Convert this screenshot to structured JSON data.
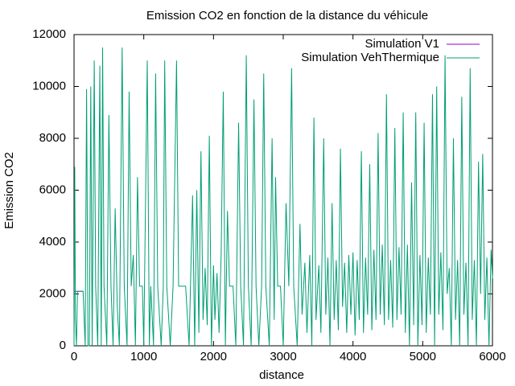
{
  "chart_data": {
    "type": "line",
    "title": "Emission CO2 en fonction de la distance du véhicule",
    "xlabel": "distance",
    "ylabel": "Emission CO2",
    "xlim": [
      0,
      6000
    ],
    "xticks": [
      0,
      1000,
      2000,
      3000,
      4000,
      5000,
      6000
    ],
    "ylim": [
      0,
      12000
    ],
    "yticks": [
      0,
      2000,
      4000,
      6000,
      8000,
      10000,
      12000
    ],
    "grid": false,
    "legend_position": "top-right",
    "series": [
      {
        "name": "Simulation V1",
        "color": "#9400d3",
        "x": [
          0,
          50,
          130
        ],
        "values": [
          2100,
          2100,
          2100
        ]
      },
      {
        "name": "Simulation VehThermique",
        "color": "#009e73",
        "x": [
          0,
          10,
          20,
          35,
          50,
          130,
          160,
          180,
          200,
          220,
          240,
          260,
          290,
          310,
          340,
          370,
          390,
          410,
          430,
          470,
          500,
          530,
          560,
          590,
          620,
          650,
          690,
          720,
          760,
          790,
          820,
          850,
          880,
          910,
          940,
          980,
          1000,
          1050,
          1080,
          1100,
          1140,
          1170,
          1200,
          1250,
          1280,
          1300,
          1330,
          1380,
          1420,
          1470,
          1500,
          1600,
          1650,
          1700,
          1730,
          1760,
          1790,
          1820,
          1850,
          1880,
          1910,
          1940,
          1970,
          2000,
          2020,
          2050,
          2080,
          2110,
          2140,
          2170,
          2200,
          2230,
          2280,
          2320,
          2360,
          2390,
          2430,
          2470,
          2500,
          2540,
          2580,
          2610,
          2650,
          2690,
          2720,
          2750,
          2800,
          2840,
          2870,
          2890,
          2920,
          2960,
          3000,
          3040,
          3080,
          3120,
          3150,
          3200,
          3240,
          3270,
          3310,
          3340,
          3380,
          3410,
          3440,
          3470,
          3510,
          3540,
          3580,
          3610,
          3640,
          3670,
          3700,
          3730,
          3760,
          3790,
          3820,
          3850,
          3880,
          3910,
          3940,
          3970,
          4000,
          4030,
          4060,
          4090,
          4120,
          4150,
          4180,
          4210,
          4240,
          4270,
          4300,
          4330,
          4360,
          4390,
          4420,
          4450,
          4480,
          4510,
          4540,
          4570,
          4600,
          4630,
          4660,
          4690,
          4720,
          4750,
          4780,
          4810,
          4840,
          4870,
          4900,
          4930,
          4960,
          4990,
          5020,
          5050,
          5080,
          5110,
          5140,
          5170,
          5200,
          5230,
          5260,
          5290,
          5320,
          5350,
          5380,
          5410,
          5440,
          5470,
          5500,
          5530,
          5560,
          5590,
          5620,
          5650,
          5680,
          5710,
          5740,
          5770,
          5800,
          5830,
          5860,
          5890,
          5920,
          5950,
          5980,
          6000
        ],
        "values": [
          0,
          6900,
          1000,
          0,
          2100,
          2100,
          0,
          9900,
          0,
          0,
          10000,
          0,
          11000,
          2300,
          0,
          10800,
          0,
          11500,
          2300,
          0,
          8900,
          2300,
          0,
          5300,
          1500,
          0,
          11500,
          2300,
          0,
          9800,
          2300,
          3500,
          0,
          6500,
          2300,
          2300,
          0,
          11000,
          0,
          2300,
          0,
          10500,
          2300,
          0,
          2300,
          11000,
          2300,
          0,
          2300,
          11000,
          2300,
          2300,
          0,
          5800,
          0,
          6000,
          500,
          7500,
          1000,
          3000,
          800,
          8100,
          0,
          3100,
          1000,
          2800,
          500,
          3600,
          9800,
          0,
          5200,
          2300,
          2300,
          0,
          8600,
          2300,
          0,
          11200,
          2300,
          0,
          9500,
          2300,
          0,
          2300,
          10500,
          2300,
          0,
          8000,
          1000,
          6500,
          2300,
          2300,
          0,
          5500,
          2300,
          10700,
          2300,
          0,
          4700,
          1200,
          3200,
          500,
          3500,
          0,
          8800,
          1000,
          3100,
          500,
          8000,
          1200,
          3400,
          0,
          5500,
          1000,
          3300,
          600,
          7600,
          1500,
          3200,
          500,
          3500,
          1200,
          3600,
          400,
          3300,
          1000,
          7500,
          500,
          3400,
          1200,
          7000,
          600,
          3700,
          1000,
          8200,
          1200,
          3900,
          800,
          9700,
          1000,
          3300,
          700,
          8400,
          1000,
          3800,
          1200,
          9000,
          500,
          3900,
          0,
          6300,
          800,
          9000,
          0,
          3500,
          800,
          8600,
          500,
          3400,
          1200,
          9700,
          0,
          10000,
          1200,
          3600,
          600,
          11200,
          2000,
          3000,
          0,
          8000,
          1000,
          3300,
          0,
          9600,
          1200,
          3200,
          0,
          10700,
          1000,
          3300,
          0,
          7100,
          2000,
          7400,
          1000,
          3400,
          0,
          3700,
          2600
        ]
      }
    ]
  }
}
